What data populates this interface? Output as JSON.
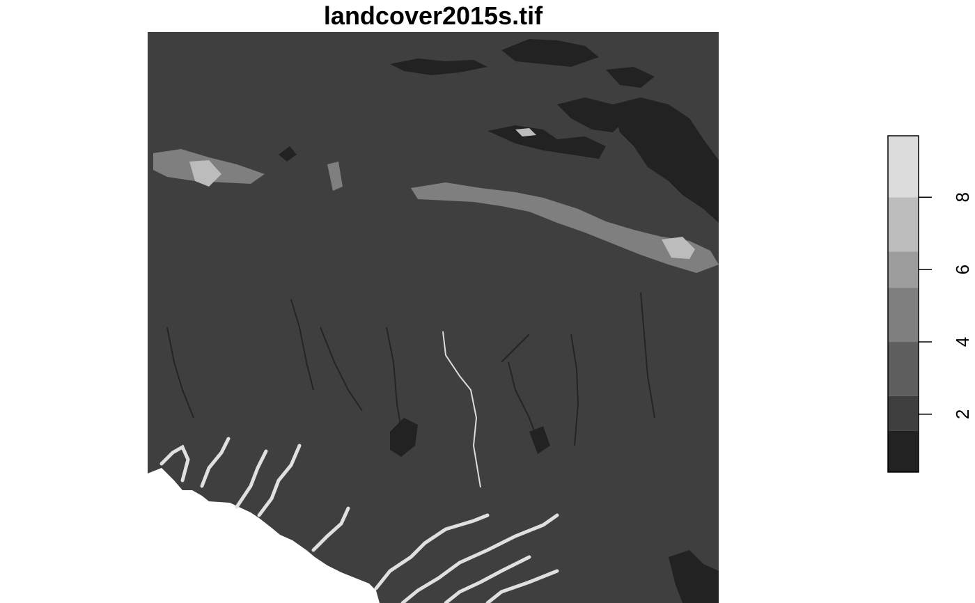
{
  "map": {
    "title": "landcover2015s.tif",
    "raster_fill": "#3f3f3f"
  },
  "legend": {
    "type": "continuous-classes",
    "ticks": [
      "2",
      "4",
      "6",
      "8"
    ],
    "class_colors": [
      "#222222",
      "#3f3f3f",
      "#5e5e5e",
      "#7f7f7f",
      "#9d9d9d",
      "#bcbcbc",
      "#dcdcdc"
    ]
  }
}
